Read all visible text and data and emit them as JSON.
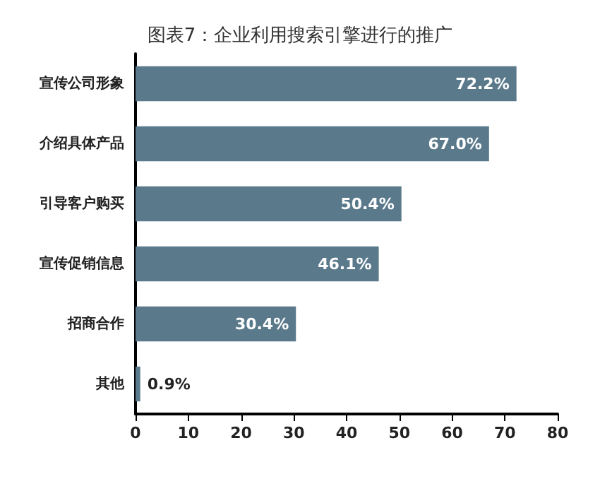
{
  "chart_data": {
    "type": "bar",
    "orientation": "horizontal",
    "title": "图表7：企业利用搜索引擎进行的推广",
    "categories": [
      "宣传公司形象",
      "介绍具体产品",
      "引导客户购买",
      "宣传促销信息",
      "招商合作",
      "其他"
    ],
    "values": [
      72.2,
      67.0,
      50.4,
      46.1,
      30.4,
      0.9
    ],
    "value_labels": [
      "72.2%",
      "67.0%",
      "50.4%",
      "46.1%",
      "30.4%",
      "0.9%"
    ],
    "color": "#5a7a8c",
    "xlim": [
      0,
      80
    ],
    "xticks": [
      0,
      10,
      20,
      30,
      40,
      50,
      60,
      70,
      80
    ],
    "grid": false
  }
}
